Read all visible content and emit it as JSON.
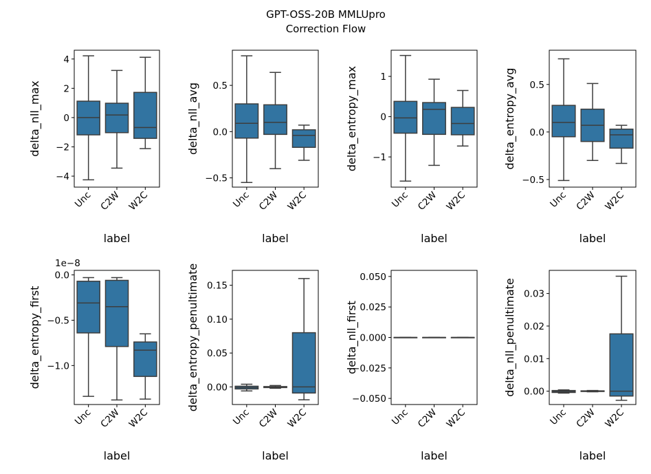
{
  "title_lines": [
    "GPT-OSS-20B MMLUpro",
    "Correction Flow"
  ],
  "colors": {
    "box_fill": "#3274a1",
    "line": "#3d3d3d"
  },
  "chart_data": [
    {
      "type": "box",
      "ylabel": "delta_nll_max",
      "xlabel": "label",
      "categories": [
        "Unc",
        "C2W",
        "W2C"
      ],
      "ylim": [
        -4.75,
        4.6
      ],
      "yticks": [
        -4,
        -2,
        0,
        2,
        4
      ],
      "ytick_labels": [
        "−4",
        "−2",
        "0",
        "2",
        "4"
      ],
      "offset": "",
      "boxes": [
        {
          "whislo": -4.25,
          "q1": -1.18,
          "med": 0.0,
          "q3": 1.12,
          "whishi": 4.22
        },
        {
          "whislo": -3.45,
          "q1": -1.03,
          "med": 0.18,
          "q3": 0.98,
          "whishi": 3.22
        },
        {
          "whislo": -2.12,
          "q1": -1.42,
          "med": -0.68,
          "q3": 1.72,
          "whishi": 4.12
        }
      ]
    },
    {
      "type": "box",
      "ylabel": "delta_nll_avg",
      "xlabel": "label",
      "categories": [
        "Unc",
        "C2W",
        "W2C"
      ],
      "ylim": [
        -0.6,
        0.88
      ],
      "yticks": [
        -0.5,
        0.0,
        0.5
      ],
      "ytick_labels": [
        "−0.5",
        "0.0",
        "0.5"
      ],
      "offset": "",
      "boxes": [
        {
          "whislo": -0.55,
          "q1": -0.07,
          "med": 0.09,
          "q3": 0.3,
          "whishi": 0.82
        },
        {
          "whislo": -0.4,
          "q1": -0.03,
          "med": 0.1,
          "q3": 0.29,
          "whishi": 0.64
        },
        {
          "whislo": -0.31,
          "q1": -0.17,
          "med": -0.04,
          "q3": 0.02,
          "whishi": 0.07
        }
      ]
    },
    {
      "type": "box",
      "ylabel": "delta_entropy_max",
      "xlabel": "label",
      "categories": [
        "Unc",
        "C2W",
        "W2C"
      ],
      "ylim": [
        -1.75,
        1.65
      ],
      "yticks": [
        -1,
        0,
        1
      ],
      "ytick_labels": [
        "−1",
        "0",
        "1"
      ],
      "offset": "",
      "boxes": [
        {
          "whislo": -1.6,
          "q1": -0.41,
          "med": -0.03,
          "q3": 0.38,
          "whishi": 1.52
        },
        {
          "whislo": -1.21,
          "q1": -0.44,
          "med": 0.18,
          "q3": 0.35,
          "whishi": 0.93
        },
        {
          "whislo": -0.73,
          "q1": -0.45,
          "med": -0.17,
          "q3": 0.23,
          "whishi": 0.65
        }
      ]
    },
    {
      "type": "box",
      "ylabel": "delta_entropy_avg",
      "xlabel": "label",
      "categories": [
        "Unc",
        "C2W",
        "W2C"
      ],
      "ylim": [
        -0.58,
        0.86
      ],
      "yticks": [
        -0.5,
        0.0,
        0.5
      ],
      "ytick_labels": [
        "−0.5",
        "0.0",
        "0.5"
      ],
      "offset": "",
      "boxes": [
        {
          "whislo": -0.51,
          "q1": -0.05,
          "med": 0.1,
          "q3": 0.28,
          "whishi": 0.77
        },
        {
          "whislo": -0.3,
          "q1": -0.1,
          "med": 0.07,
          "q3": 0.24,
          "whishi": 0.51
        },
        {
          "whislo": -0.33,
          "q1": -0.17,
          "med": -0.03,
          "q3": 0.03,
          "whishi": 0.07
        }
      ]
    },
    {
      "type": "box",
      "ylabel": "delta_entropy_first",
      "xlabel": "label",
      "categories": [
        "Unc",
        "C2W",
        "W2C"
      ],
      "ylim": [
        -1.43,
        0.05
      ],
      "yticks": [
        -1.0,
        -0.5,
        0.0
      ],
      "ytick_labels": [
        "−1.0",
        "−0.5",
        "0.0"
      ],
      "offset": "1e−8",
      "boxes": [
        {
          "whislo": -1.34,
          "q1": -0.64,
          "med": -0.31,
          "q3": -0.07,
          "whishi": -0.03
        },
        {
          "whislo": -1.38,
          "q1": -0.79,
          "med": -0.35,
          "q3": -0.06,
          "whishi": -0.03
        },
        {
          "whislo": -1.37,
          "q1": -1.12,
          "med": -0.83,
          "q3": -0.74,
          "whishi": -0.65
        }
      ]
    },
    {
      "type": "box",
      "ylabel": "delta_entropy_penultimate",
      "xlabel": "label",
      "categories": [
        "Unc",
        "C2W",
        "W2C"
      ],
      "ylim": [
        -0.026,
        0.172
      ],
      "yticks": [
        0.0,
        0.05,
        0.1,
        0.15
      ],
      "ytick_labels": [
        "0.00",
        "0.05",
        "0.10",
        "0.15"
      ],
      "offset": "",
      "boxes": [
        {
          "whislo": -0.006,
          "q1": -0.003,
          "med": -0.001,
          "q3": 0.001,
          "whislo_note": "",
          "whishi": 0.004
        },
        {
          "whislo": -0.002,
          "q1": -0.001,
          "med": -0.0003,
          "q3": 0.0005,
          "whishi": 0.002
        },
        {
          "whislo": -0.019,
          "q1": -0.009,
          "med": 0.0,
          "q3": 0.08,
          "whishi": 0.16
        }
      ]
    },
    {
      "type": "box",
      "ylabel": "delta_nll_first",
      "xlabel": "label",
      "categories": [
        "Unc",
        "C2W",
        "W2C"
      ],
      "ylim": [
        -0.055,
        0.055
      ],
      "yticks": [
        -0.05,
        -0.025,
        0.0,
        0.025,
        0.05
      ],
      "ytick_labels": [
        "−0.050",
        "−0.025",
        "0.000",
        "0.025",
        "0.050"
      ],
      "offset": "",
      "boxes": [
        {
          "whislo": 0.0,
          "q1": 0.0,
          "med": 0.0,
          "q3": 0.0,
          "whishi": 0.0
        },
        {
          "whislo": 0.0,
          "q1": 0.0,
          "med": 0.0,
          "q3": 0.0,
          "whishi": 0.0
        },
        {
          "whislo": 0.0,
          "q1": 0.0,
          "med": 0.0,
          "q3": 0.0,
          "whishi": 0.0
        }
      ]
    },
    {
      "type": "box",
      "ylabel": "delta_nll_penultimate",
      "xlabel": "label",
      "categories": [
        "Unc",
        "C2W",
        "W2C"
      ],
      "ylim": [
        -0.0041,
        0.0371
      ],
      "yticks": [
        0.0,
        0.01,
        0.02,
        0.03
      ],
      "ytick_labels": [
        "0.00",
        "0.01",
        "0.02",
        "0.03"
      ],
      "offset": "",
      "boxes": [
        {
          "whislo": -0.0006,
          "q1": -0.0004,
          "med": -0.0001,
          "q3": 0.0002,
          "whishi": 0.0004
        },
        {
          "whislo": -0.0002,
          "q1": -0.0001,
          "med": 0.0,
          "q3": 0.0001,
          "whishi": 0.0002
        },
        {
          "whislo": -0.0028,
          "q1": -0.0015,
          "med": 0.0,
          "q3": 0.0176,
          "whishi": 0.0353
        }
      ]
    }
  ]
}
